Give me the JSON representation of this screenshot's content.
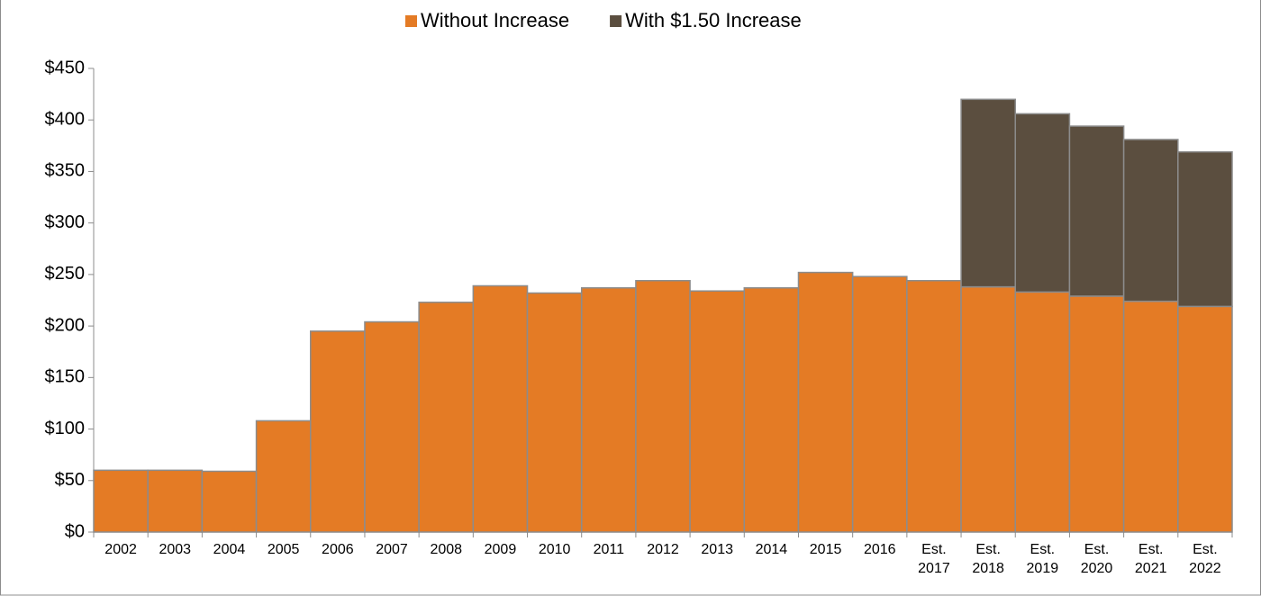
{
  "chart_data": {
    "type": "bar",
    "stacked": true,
    "categories": [
      "2002",
      "2003",
      "2004",
      "2005",
      "2006",
      "2007",
      "2008",
      "2009",
      "2010",
      "2011",
      "2012",
      "2013",
      "2014",
      "2015",
      "2016",
      "Est. 2017",
      "Est. 2018",
      "Est. 2019",
      "Est. 2020",
      "Est. 2021",
      "Est. 2022"
    ],
    "series": [
      {
        "name": "Without Increase",
        "color": "#e47b25",
        "values": [
          60,
          60,
          59,
          108,
          195,
          204,
          223,
          239,
          232,
          237,
          244,
          234,
          237,
          252,
          248,
          244,
          238,
          233,
          229,
          224,
          219
        ]
      },
      {
        "name": "With $1.50 Increase",
        "color": "#5b4e3f",
        "values": [
          null,
          null,
          null,
          null,
          null,
          null,
          null,
          null,
          null,
          null,
          null,
          null,
          null,
          null,
          null,
          null,
          182,
          173,
          165,
          157,
          150
        ]
      }
    ],
    "ylim": [
      0,
      450
    ],
    "yticks": [
      {
        "value": 0,
        "label": "$0"
      },
      {
        "value": 50,
        "label": "$50"
      },
      {
        "value": 100,
        "label": "$100"
      },
      {
        "value": 150,
        "label": "$150"
      },
      {
        "value": 200,
        "label": "$200"
      },
      {
        "value": 250,
        "label": "$250"
      },
      {
        "value": 300,
        "label": "$300"
      },
      {
        "value": 350,
        "label": "$350"
      },
      {
        "value": 400,
        "label": "$400"
      },
      {
        "value": 450,
        "label": "$450"
      }
    ],
    "legend": "top"
  }
}
